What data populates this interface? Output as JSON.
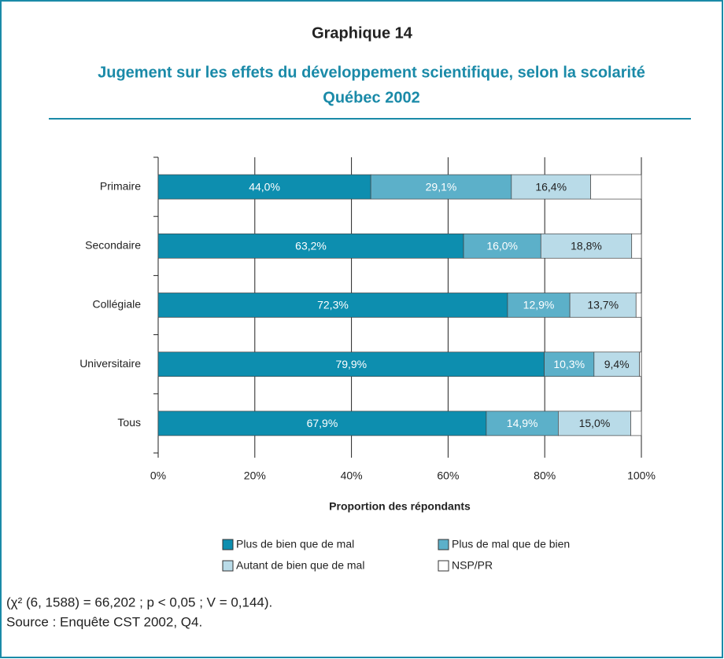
{
  "chart_data": {
    "type": "stacked-barh",
    "title": "Graphique 14",
    "subtitle": [
      "Jugement sur les effets du développement scientifique, selon la scolarité",
      "Québec 2002"
    ],
    "x_label": "Proportion des répondants",
    "categories": [
      "Primaire",
      "Secondaire",
      "Collégiale",
      "Universitaire",
      "Tous"
    ],
    "series": [
      {
        "name": "Plus de bien que de mal",
        "color": "#0d8eaf",
        "label_color": "#ffffff",
        "values": [
          44.0,
          63.2,
          72.3,
          79.9,
          67.9
        ],
        "value_labels": [
          "44,0%",
          "63,2%",
          "72,3%",
          "79,9%",
          "67,9%"
        ]
      },
      {
        "name": "Plus de mal que de bien",
        "color": "#5cb0c9",
        "label_color": "#ffffff",
        "values": [
          29.1,
          16.0,
          12.9,
          10.3,
          14.9
        ],
        "value_labels": [
          "29,1%",
          "16,0%",
          "12,9%",
          "10,3%",
          "14,9%"
        ]
      },
      {
        "name": "Autant de bien que de mal",
        "color": "#b9dbe8",
        "label_color": "#222222",
        "values": [
          16.4,
          18.8,
          13.7,
          9.4,
          15.0
        ],
        "value_labels": [
          "16,4%",
          "18,8%",
          "13,7%",
          "9,4%",
          "15,0%"
        ]
      },
      {
        "name": "NSP/PR",
        "color": "#ffffff",
        "values": [
          10.5,
          2.0,
          1.1,
          0.4,
          2.2
        ]
      }
    ],
    "xlim": [
      0,
      100
    ],
    "xticks": [
      {
        "value": 0,
        "label": "0%"
      },
      {
        "value": 20,
        "label": "20%"
      },
      {
        "value": 40,
        "label": "40%"
      },
      {
        "value": 60,
        "label": "60%"
      },
      {
        "value": 80,
        "label": "80%"
      },
      {
        "value": 100,
        "label": "100%"
      }
    ],
    "grid": true,
    "note": "(χ² (6, 1588) = 66,202 ; p < 0,05 ; V = 0,144).",
    "source": "Source : Enquête CST 2002, Q4."
  }
}
